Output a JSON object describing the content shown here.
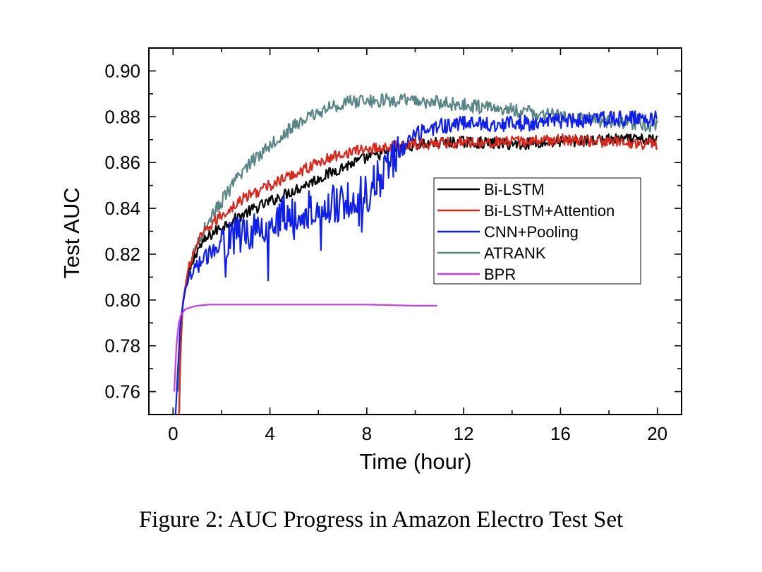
{
  "caption": "Figure 2: AUC Progress in Amazon Electro Test Set",
  "chart_data": {
    "type": "line",
    "xlabel": "Time (hour)",
    "ylabel": "Test AUC",
    "xlim": [
      -1,
      21
    ],
    "ylim": [
      0.75,
      0.91
    ],
    "xticks": [
      0,
      4,
      8,
      12,
      16,
      20
    ],
    "yticks": [
      0.76,
      0.78,
      0.8,
      0.82,
      0.84,
      0.86,
      0.88,
      0.9
    ],
    "legend_position": "center-right",
    "series": [
      {
        "name": "Bi-LSTM",
        "color": "#000000",
        "noise": 0.0025,
        "x": [
          0.25,
          0.3,
          0.4,
          0.6,
          1.0,
          1.5,
          2,
          3,
          4,
          5,
          6,
          7,
          8,
          9,
          10,
          12,
          14,
          16,
          18,
          20
        ],
        "y": [
          0.75,
          0.775,
          0.798,
          0.81,
          0.822,
          0.828,
          0.832,
          0.838,
          0.843,
          0.848,
          0.853,
          0.858,
          0.862,
          0.865,
          0.868,
          0.869,
          0.868,
          0.869,
          0.87,
          0.87
        ]
      },
      {
        "name": "Bi-LSTM+Attention",
        "color": "#d42a20",
        "noise": 0.0025,
        "x": [
          0.25,
          0.3,
          0.4,
          0.6,
          1.0,
          1.5,
          2,
          3,
          4,
          5,
          6,
          7,
          8,
          9,
          10,
          12,
          14,
          16,
          18,
          20
        ],
        "y": [
          0.75,
          0.776,
          0.799,
          0.812,
          0.825,
          0.832,
          0.837,
          0.845,
          0.85,
          0.855,
          0.86,
          0.864,
          0.866,
          0.867,
          0.868,
          0.869,
          0.869,
          0.87,
          0.869,
          0.868
        ]
      },
      {
        "name": "CNN+Pooling",
        "color": "#1020e6",
        "noise": 0.006,
        "x": [
          0.1,
          0.2,
          0.3,
          0.5,
          1.0,
          1.5,
          2,
          3,
          4,
          5,
          6,
          7,
          8,
          9,
          10,
          11,
          12,
          14,
          16,
          18,
          20
        ],
        "y": [
          0.75,
          0.77,
          0.79,
          0.805,
          0.815,
          0.82,
          0.826,
          0.83,
          0.835,
          0.838,
          0.84,
          0.843,
          0.846,
          0.86,
          0.872,
          0.876,
          0.877,
          0.877,
          0.878,
          0.879,
          0.879
        ]
      },
      {
        "name": "ATRANK",
        "color": "#5a8585",
        "noise": 0.003,
        "x": [
          0.2,
          0.3,
          0.5,
          0.8,
          1.0,
          1.5,
          2,
          3,
          4,
          5,
          6,
          7,
          8,
          9,
          10,
          12,
          14,
          16,
          18,
          20
        ],
        "y": [
          0.76,
          0.79,
          0.805,
          0.818,
          0.825,
          0.835,
          0.843,
          0.858,
          0.868,
          0.876,
          0.882,
          0.886,
          0.887,
          0.887,
          0.887,
          0.885,
          0.883,
          0.88,
          0.878,
          0.876
        ]
      },
      {
        "name": "BPR",
        "color": "#c43ee6",
        "noise": 0,
        "x": [
          0.05,
          0.1,
          0.2,
          0.3,
          0.5,
          0.8,
          1.0,
          1.5,
          2.0,
          3.0,
          4.0,
          6.0,
          8.0,
          10.0,
          10.9
        ],
        "y": [
          0.76,
          0.775,
          0.788,
          0.793,
          0.796,
          0.797,
          0.7975,
          0.798,
          0.798,
          0.798,
          0.798,
          0.798,
          0.798,
          0.7975,
          0.7975
        ]
      }
    ]
  }
}
